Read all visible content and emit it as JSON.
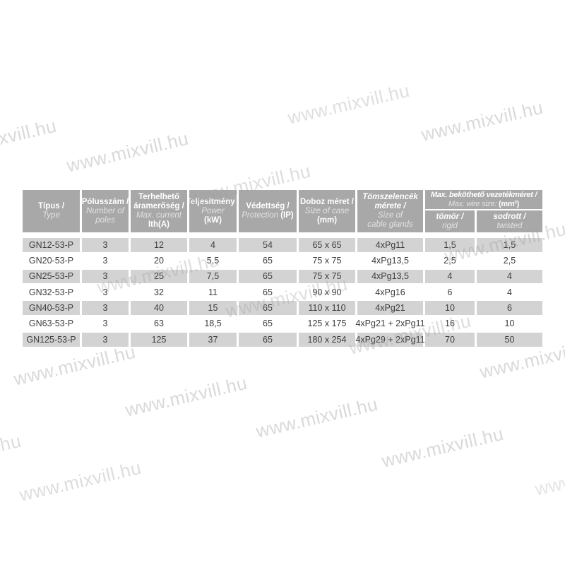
{
  "page": {
    "background": "#ffffff"
  },
  "watermark": {
    "text": "www.mixvill.hu",
    "color": "#9e9e9e",
    "base_opacity": 0.38
  },
  "colors": {
    "header_bg": "#a8a8a8",
    "row_alt_bg": "#d3d3d3",
    "header_text": "#ffffff",
    "header_text_secondary": "#e2e2e2",
    "body_text": "#3d3d3d"
  },
  "table": {
    "headers": [
      {
        "name": "tipus",
        "lines": [
          [
            [
              "Típus /",
              "b"
            ]
          ],
          [
            [
              "Type",
              "i"
            ]
          ]
        ]
      },
      {
        "name": "polusszam",
        "lines": [
          [
            [
              "Pólusszám /",
              "b"
            ]
          ],
          [
            [
              "Number of",
              "i"
            ]
          ],
          [
            [
              "poles",
              "i"
            ]
          ]
        ]
      },
      {
        "name": "aramerosseg",
        "lines": [
          [
            [
              "Terhelhető",
              "b"
            ]
          ],
          [
            [
              "áramerőség /",
              "b"
            ]
          ],
          [
            [
              "Max. current",
              "i"
            ]
          ],
          [
            [
              "Ith(A)",
              "b"
            ]
          ]
        ]
      },
      {
        "name": "teljesitmeny",
        "lines": [
          [
            [
              "Teljesítmény /",
              "b"
            ]
          ],
          [
            [
              "Power",
              "i"
            ]
          ],
          [
            [
              "(kW)",
              "b"
            ]
          ]
        ]
      },
      {
        "name": "vedettseg",
        "lines": [
          [
            [
              "Védettség /",
              "b"
            ]
          ],
          [
            [
              "Protection ",
              "i"
            ],
            [
              "(IP)",
              "b"
            ]
          ]
        ]
      },
      {
        "name": "doboz-meret",
        "lines": [
          [
            [
              "Doboz méret /",
              "b"
            ]
          ],
          [
            [
              "Size of case",
              "i"
            ]
          ],
          [
            [
              "(mm)",
              "b"
            ]
          ]
        ]
      },
      {
        "name": "tomszelencek",
        "lines": [
          [
            [
              "Tömszelencék",
              "bi"
            ]
          ],
          [
            [
              "mérete /",
              "bi"
            ]
          ],
          [
            [
              "Size of",
              "i"
            ]
          ],
          [
            [
              "cable glands",
              "i"
            ]
          ]
        ]
      }
    ],
    "wire_group": {
      "name": "max-bekotheto-vezetekmeret",
      "lines": [
        [
          [
            "Max. beköthető vezetékméret /",
            "bi"
          ]
        ],
        [
          [
            "Max. wire size: ",
            "i"
          ],
          [
            "(mm²)",
            "b"
          ]
        ]
      ],
      "sub": [
        {
          "name": "tomor-rigid",
          "lines": [
            [
              [
                "tömör /",
                "bi"
              ]
            ],
            [
              [
                "rigid",
                "i"
              ]
            ]
          ]
        },
        {
          "name": "sodrott-twisted",
          "lines": [
            [
              [
                "sodrott /",
                "bi"
              ]
            ],
            [
              [
                "twisted",
                "i"
              ]
            ]
          ]
        }
      ]
    },
    "rows": [
      [
        "GN12-53-P",
        "3",
        "12",
        "4",
        "54",
        "65 x 65",
        "4xPg11",
        "1,5",
        "1,5"
      ],
      [
        "GN20-53-P",
        "3",
        "20",
        "5,5",
        "65",
        "75 x 75",
        "4xPg13,5",
        "2,5",
        "2,5"
      ],
      [
        "GN25-53-P",
        "3",
        "25",
        "7,5",
        "65",
        "75 x 75",
        "4xPg13,5",
        "4",
        "4"
      ],
      [
        "GN32-53-P",
        "3",
        "32",
        "11",
        "65",
        "90 x 90",
        "4xPg16",
        "6",
        "4"
      ],
      [
        "GN40-53-P",
        "3",
        "40",
        "15",
        "65",
        "110 x 110",
        "4xPg21",
        "10",
        "6"
      ],
      [
        "GN63-53-P",
        "3",
        "63",
        "18,5",
        "65",
        "125 x 175",
        "4xPg21 + 2xPg11",
        "16",
        "10"
      ],
      [
        "GN125-53-P",
        "3",
        "125",
        "37",
        "65",
        "180 x 254",
        "4xPg29 + 2xPg11",
        "70",
        "50"
      ]
    ]
  }
}
